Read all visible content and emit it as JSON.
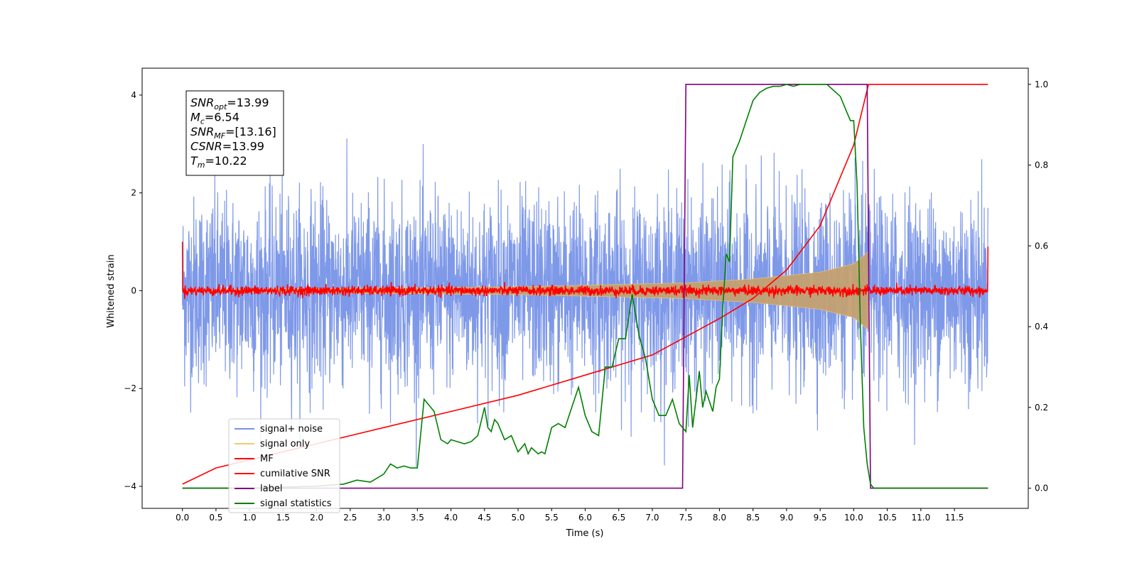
{
  "chart_data": {
    "type": "line",
    "xlabel": "Time (s)",
    "ylabel": "Whitened strain",
    "xlim": [
      -0.6,
      12.6
    ],
    "ylim": [
      -4.45,
      4.55
    ],
    "ylim_right": [
      -0.05,
      1.04
    ],
    "xticks": [
      "0.0",
      "0.5",
      "1.0",
      "1.5",
      "2.0",
      "2.5",
      "3.0",
      "3.5",
      "4.0",
      "4.5",
      "5.0",
      "5.5",
      "6.0",
      "6.5",
      "7.0",
      "7.5",
      "8.0",
      "8.5",
      "9.0",
      "9.5",
      "10.0",
      "10.5",
      "11.0",
      "11.5"
    ],
    "yticks": [
      "−4",
      "−2",
      "0",
      "2",
      "4"
    ],
    "yticks_right": [
      "0.0",
      "0.2",
      "0.4",
      "0.6",
      "0.8",
      "1.0"
    ],
    "grid": false,
    "legend_position": "lower-left",
    "annotation": [
      {
        "label": "SNR",
        "sub": "opt",
        "value": "=13.99"
      },
      {
        "label": "M",
        "sub": "c",
        "value": "=6.54"
      },
      {
        "label": "SNR",
        "sub": "MF",
        "value": "=[13.16]"
      },
      {
        "label": "CSNR",
        "sub": "",
        "value": "=13.99"
      },
      {
        "label": "T",
        "sub": "m",
        "value": "=10.22"
      }
    ],
    "series": [
      {
        "name": "signal+ noise",
        "color": "#7893e8",
        "axis": "left",
        "kind": "noise",
        "x_range": [
          0.0,
          12.0
        ],
        "std": 0.95
      },
      {
        "name": "signal only",
        "color": "#f5c96a",
        "axis": "left",
        "kind": "chirp",
        "x_range": [
          0.0,
          10.22
        ],
        "envelope": {
          "x": [
            0.0,
            5.0,
            7.5,
            8.5,
            9.5,
            10.0,
            10.22
          ],
          "y": [
            0.02,
            0.08,
            0.16,
            0.24,
            0.38,
            0.55,
            0.8
          ]
        }
      },
      {
        "name": "MF",
        "color": "#ff0000",
        "axis": "left",
        "kind": "noise",
        "x_range": [
          0.0,
          12.0
        ],
        "std": 0.05,
        "edges": {
          "start": 1.0,
          "end": 0.9
        }
      },
      {
        "name": "cumilative SNR",
        "color": "#ff0000",
        "axis": "right",
        "x": [
          0.0,
          0.5,
          1.0,
          2.0,
          3.0,
          4.0,
          5.0,
          6.0,
          7.0,
          8.0,
          8.5,
          9.0,
          9.5,
          10.0,
          10.22,
          10.22,
          12.0
        ],
        "y": [
          0.01,
          0.05,
          0.07,
          0.11,
          0.15,
          0.19,
          0.23,
          0.28,
          0.33,
          0.42,
          0.47,
          0.54,
          0.65,
          0.85,
          1.0,
          1.0,
          1.0
        ]
      },
      {
        "name": "label",
        "color": "#800080",
        "axis": "right",
        "x": [
          0.0,
          7.45,
          7.5,
          10.2,
          10.25,
          12.0
        ],
        "y": [
          0.0,
          0.0,
          1.0,
          1.0,
          0.0,
          0.0
        ]
      },
      {
        "name": "signal statistics",
        "color": "#008000",
        "axis": "right",
        "x": [
          0.0,
          1.0,
          2.0,
          2.4,
          2.6,
          2.8,
          3.0,
          3.1,
          3.2,
          3.3,
          3.4,
          3.5,
          3.6,
          3.7,
          3.75,
          3.85,
          3.95,
          4.0,
          4.2,
          4.3,
          4.4,
          4.5,
          4.55,
          4.6,
          4.65,
          4.7,
          4.8,
          4.9,
          5.0,
          5.1,
          5.15,
          5.2,
          5.3,
          5.35,
          5.4,
          5.5,
          5.6,
          5.7,
          5.8,
          5.9,
          6.0,
          6.1,
          6.2,
          6.3,
          6.4,
          6.5,
          6.6,
          6.7,
          6.8,
          6.9,
          7.0,
          7.1,
          7.2,
          7.3,
          7.4,
          7.45,
          7.5,
          7.55,
          7.6,
          7.7,
          7.75,
          7.8,
          7.9,
          7.95,
          8.0,
          8.05,
          8.1,
          8.15,
          8.2,
          8.3,
          8.4,
          8.5,
          8.6,
          8.7,
          8.8,
          8.9,
          9.0,
          9.1,
          9.2,
          9.3,
          9.4,
          9.6,
          9.8,
          9.9,
          9.95,
          10.0,
          10.05,
          10.1,
          10.15,
          10.2,
          10.25,
          10.3,
          11.0,
          12.0
        ],
        "y": [
          0.0,
          0.0,
          0.005,
          0.01,
          0.02,
          0.015,
          0.035,
          0.06,
          0.05,
          0.055,
          0.05,
          0.05,
          0.22,
          0.2,
          0.19,
          0.12,
          0.11,
          0.12,
          0.11,
          0.115,
          0.13,
          0.2,
          0.15,
          0.14,
          0.17,
          0.16,
          0.12,
          0.13,
          0.09,
          0.11,
          0.085,
          0.1,
          0.085,
          0.09,
          0.085,
          0.15,
          0.16,
          0.15,
          0.2,
          0.25,
          0.18,
          0.14,
          0.13,
          0.3,
          0.3,
          0.37,
          0.37,
          0.48,
          0.38,
          0.32,
          0.22,
          0.18,
          0.18,
          0.22,
          0.16,
          0.15,
          0.14,
          0.28,
          0.15,
          0.29,
          0.2,
          0.24,
          0.19,
          0.25,
          0.27,
          0.45,
          0.58,
          0.56,
          0.82,
          0.86,
          0.91,
          0.96,
          0.98,
          0.99,
          0.995,
          0.995,
          1.0,
          0.995,
          1.0,
          1.0,
          1.0,
          1.0,
          0.97,
          0.93,
          0.91,
          0.91,
          0.75,
          0.4,
          0.15,
          0.06,
          0.01,
          0.0,
          0.0,
          0.0
        ]
      }
    ]
  }
}
